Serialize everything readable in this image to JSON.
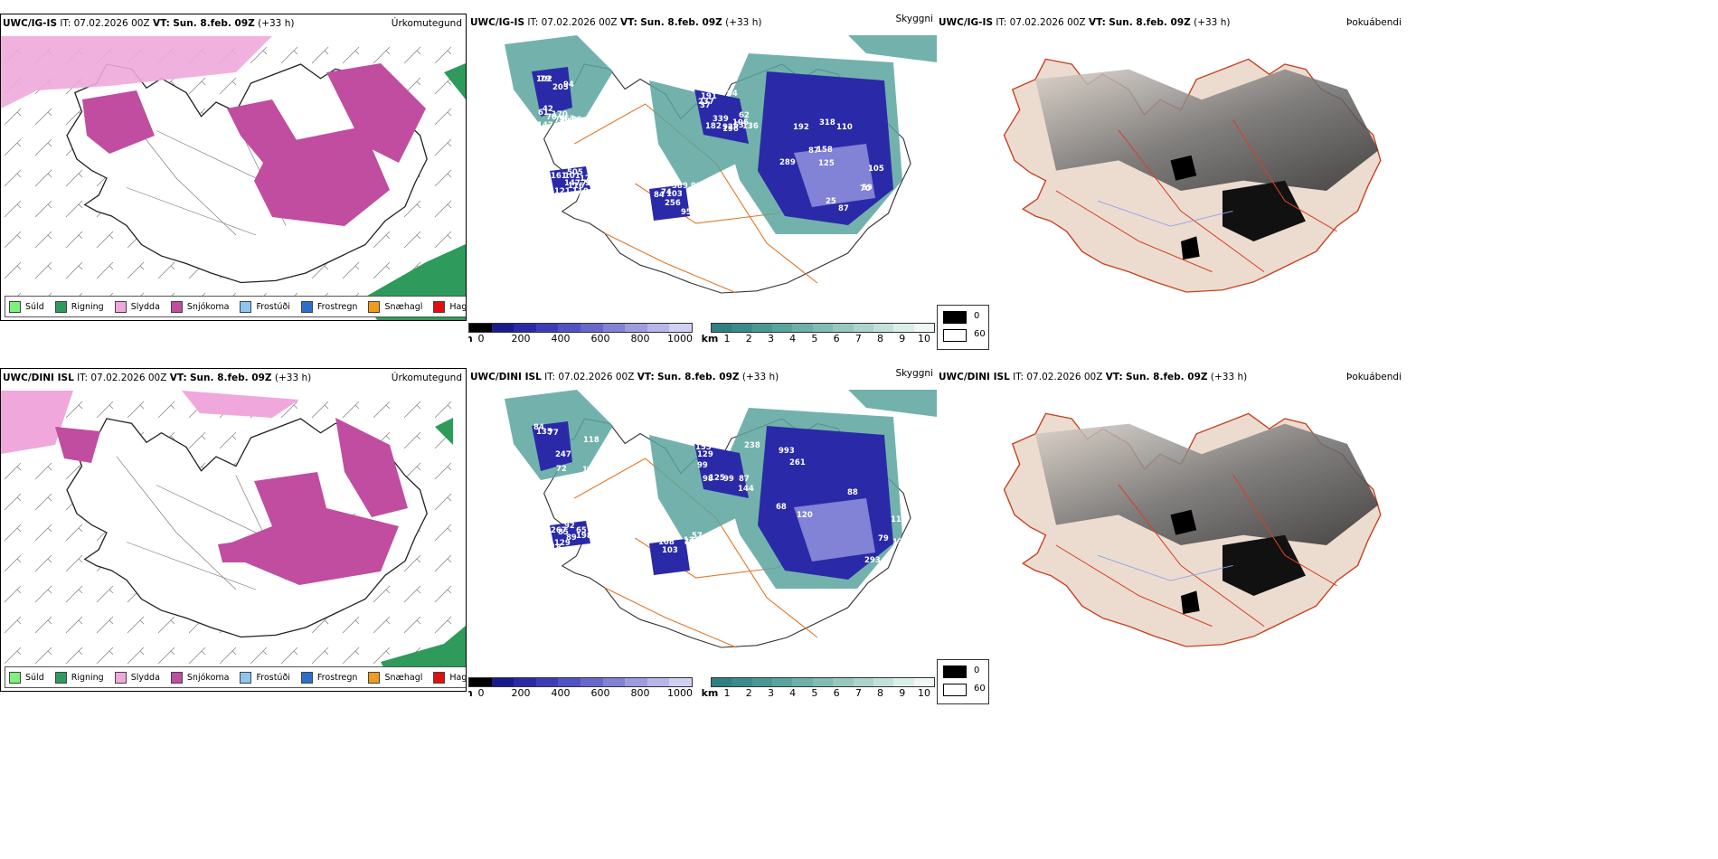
{
  "rows": [
    {
      "precip": {
        "model": "UWC/IG-IS",
        "it_label": "IT:",
        "it": "07.02.2026 00Z",
        "vt_label": "VT:",
        "vt": "Sun. 8.feb. 09Z",
        "lead": "(+33 h)",
        "name": "Úrkomutegund"
      },
      "vis": {
        "model": "UWC/IG-IS",
        "it_label": "IT:",
        "it": "07.02.2026 00Z",
        "vt_label": "VT:",
        "vt": "Sun. 8.feb. 09Z",
        "lead": "(+33 h)",
        "name": "Skyggni"
      },
      "fog": {
        "model": "UWC/IG-IS",
        "it_label": "IT:",
        "it": "07.02.2026 00Z",
        "vt_label": "VT:",
        "vt": "Sun. 8.feb. 09Z",
        "lead": "(+33 h)",
        "name": "Þokuábendi"
      },
      "ceiling_numbers": [
        "79",
        "92",
        "110",
        "161",
        "73",
        "61",
        "196",
        "289",
        "90",
        "74",
        "42",
        "136",
        "25",
        "82",
        "91",
        "108",
        "63",
        "70",
        "86",
        "91",
        "79",
        "62",
        "192",
        "147",
        "95",
        "70",
        "94",
        "87",
        "101",
        "103",
        "102",
        "106",
        "105",
        "110",
        "116",
        "205",
        "191",
        "59",
        "116",
        "256",
        "147",
        "182",
        "87",
        "121",
        "84",
        "94",
        "37",
        "125",
        "505",
        "389",
        "563",
        "237",
        "158",
        "70",
        "76",
        "170",
        "339",
        "318",
        "176",
        "169",
        "29"
      ]
    },
    {
      "precip": {
        "model": "UWC/DINI ISL",
        "it_label": "IT:",
        "it": "07.02.2026 00Z",
        "vt_label": "VT:",
        "vt": "Sun. 8.feb. 09Z",
        "lead": "(+33 h)",
        "name": "Úrkomutegund"
      },
      "vis": {
        "model": "UWC/DINI ISL",
        "it_label": "IT:",
        "it": "07.02.2026 00Z",
        "vt_label": "VT:",
        "vt": "Sun. 8.feb. 09Z",
        "lead": "(+33 h)",
        "name": "Skyggni"
      },
      "fog": {
        "model": "UWC/DINI ISL",
        "it_label": "IT:",
        "it": "07.02.2026 00Z",
        "vt_label": "VT:",
        "vt": "Sun. 8.feb. 09Z",
        "lead": "(+33 h)",
        "name": "Þokuábendi"
      },
      "ceiling_numbers": [
        "135",
        "99",
        "88",
        "18",
        "134",
        "84",
        "125",
        "133",
        "92",
        "108",
        "72",
        "87",
        "68",
        "89",
        "48",
        "77",
        "155",
        "293",
        "85",
        "57",
        "87",
        "129",
        "115",
        "65",
        "103",
        "118",
        "98",
        "993",
        "267",
        "147",
        "157",
        "99",
        "120",
        "129",
        "196",
        "247",
        "238",
        "261",
        "129",
        "118",
        "191",
        "144",
        "79",
        "198",
        "76"
      ]
    }
  ],
  "precip_legend": [
    {
      "label": "Súld",
      "color": "#7df07d"
    },
    {
      "label": "Rigning",
      "color": "#2e9a5c"
    },
    {
      "label": "Slydda",
      "color": "#f0a8dc"
    },
    {
      "label": "Snjókoma",
      "color": "#c04da0"
    },
    {
      "label": "Frostúði",
      "color": "#8ec4f0"
    },
    {
      "label": "Frostregn",
      "color": "#2d6fc8"
    },
    {
      "label": "Snæhagl",
      "color": "#f09a20"
    },
    {
      "label": "Haglél",
      "color": "#e01010"
    }
  ],
  "ceiling_bar": {
    "unit": "m",
    "ticks": [
      "0",
      "200",
      "400",
      "600",
      "800",
      "1000"
    ],
    "colors": [
      "#000000",
      "#1a1a8c",
      "#2a2aa8",
      "#3c3cb8",
      "#5252c4",
      "#6868cc",
      "#8282d6",
      "#9c9ce0",
      "#b6b6ea",
      "#d0d0f2"
    ]
  },
  "vis_bar": {
    "unit": "km",
    "ticks": [
      "1",
      "2",
      "3",
      "4",
      "5",
      "6",
      "7",
      "8",
      "9",
      "10"
    ],
    "colors": [
      "#2f8080",
      "#3a8c8a",
      "#4a9894",
      "#5aa49e",
      "#6cb0a8",
      "#80bcb4",
      "#96c8c0",
      "#acd4cc",
      "#c4e0da",
      "#dceee8",
      "#f0f8f6"
    ]
  },
  "fog_legend": [
    {
      "value": "0",
      "color": "#000000"
    },
    {
      "value": "60",
      "color": "#ffffff"
    }
  ]
}
